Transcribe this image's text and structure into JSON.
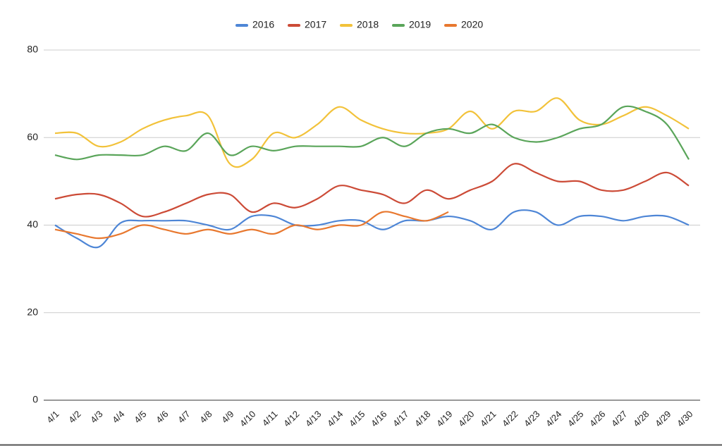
{
  "chart_data": {
    "type": "line",
    "categories": [
      "4/1",
      "4/2",
      "4/3",
      "4/4",
      "4/5",
      "4/6",
      "4/7",
      "4/8",
      "4/9",
      "4/10",
      "4/11",
      "4/12",
      "4/13",
      "4/14",
      "4/15",
      "4/16",
      "4/17",
      "4/18",
      "4/19",
      "4/20",
      "4/21",
      "4/22",
      "4/23",
      "4/24",
      "4/25",
      "4/26",
      "4/27",
      "4/28",
      "4/29",
      "4/30"
    ],
    "series": [
      {
        "name": "2016",
        "color": "#4e86d6",
        "values": [
          40,
          37,
          35,
          40.5,
          41,
          41,
          41,
          40,
          39,
          42,
          42,
          40,
          40,
          41,
          41,
          39,
          41,
          41,
          42,
          41,
          39,
          43,
          43,
          40,
          42,
          42,
          41,
          42,
          42,
          40
        ]
      },
      {
        "name": "2017",
        "color": "#cc4b37",
        "values": [
          46,
          47,
          47,
          45,
          42,
          43,
          45,
          47,
          47,
          43,
          45,
          44,
          46,
          49,
          48,
          47,
          45,
          48,
          46,
          48,
          50,
          54,
          52,
          50,
          50,
          48,
          48,
          50,
          52,
          49
        ]
      },
      {
        "name": "2018",
        "color": "#f2c23a",
        "values": [
          61,
          61,
          58,
          59,
          62,
          64,
          65,
          65,
          54,
          55,
          61,
          60,
          63,
          67,
          64,
          62,
          61,
          61,
          62,
          66,
          62,
          66,
          66,
          69,
          64,
          63,
          65,
          67,
          65,
          62
        ]
      },
      {
        "name": "2019",
        "color": "#5aa55a",
        "values": [
          56,
          55,
          56,
          56,
          56,
          58,
          57,
          61,
          56,
          58,
          57,
          58,
          58,
          58,
          58,
          60,
          58,
          61,
          62,
          61,
          63,
          60,
          59,
          60,
          62,
          63,
          67,
          66,
          63,
          55
        ]
      },
      {
        "name": "2020",
        "color": "#e8782f",
        "values": [
          39,
          38,
          37,
          38,
          40,
          39,
          38,
          39,
          38,
          39,
          38,
          40,
          39,
          40,
          40,
          43,
          42,
          41,
          43,
          null,
          null,
          null,
          null,
          null,
          null,
          null,
          null,
          null,
          null,
          null
        ]
      }
    ],
    "ylim": [
      0,
      80
    ],
    "yticks": [
      0,
      20,
      40,
      60,
      80
    ],
    "grid": true,
    "legend": "top"
  }
}
